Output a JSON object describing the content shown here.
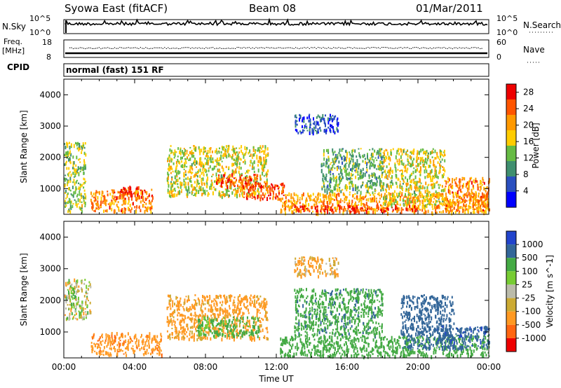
{
  "header": {
    "station": "Syowa East (fitACF)",
    "beam": "Beam 08",
    "date": "01/Mar/2011"
  },
  "panels": {
    "nsky": {
      "left_label": "N.Sky",
      "left_top": "10^5",
      "left_bottom": "10^0",
      "right_label": "N.Search",
      "right_top": "10^5",
      "right_bottom": "10^0"
    },
    "freq": {
      "left_label_1": "Freq.",
      "left_label_2": "[MHz]",
      "left_top": "18",
      "left_bottom": "8",
      "right_label": "Nave",
      "right_top": "60",
      "right_bottom": "0"
    },
    "cpid": {
      "label": "CPID",
      "value": "normal (fast) 151 RF"
    }
  },
  "colors": {
    "power_scale": [
      "#0000ff",
      "#2a4fbf",
      "#3f8f6f",
      "#66bb44",
      "#ffcc00",
      "#ff9900",
      "#ff5500",
      "#ee0000"
    ],
    "velocity_scale": [
      "#2244cc",
      "#336699",
      "#44aa44",
      "#77cc33",
      "#bbbbaa",
      "#ccaa33",
      "#ff9922",
      "#ff6611",
      "#ee0000"
    ]
  },
  "chart_data": [
    {
      "type": "heatmap",
      "variable": "power",
      "ylabel": "Slant Range [km]",
      "xlabel": "Time UT",
      "ylim": [
        180,
        4500
      ],
      "xlim": [
        "00:00",
        "24:00"
      ],
      "y_ticks": [
        1000,
        2000,
        3000,
        4000
      ],
      "x_ticks": [
        "00:00",
        "04:00",
        "08:00",
        "12:00",
        "16:00",
        "20:00",
        "00:00"
      ],
      "colorbar": {
        "label": "Power [dB]",
        "ticks": [
          4,
          8,
          12,
          16,
          20,
          24,
          28
        ],
        "range": [
          0,
          30
        ]
      },
      "echo_regions": [
        {
          "t0": 0.0,
          "t1": 1.2,
          "r0": 300,
          "r1": 2500,
          "value": 14
        },
        {
          "t0": 1.5,
          "t1": 5.0,
          "r0": 300,
          "r1": 1000,
          "value": 22
        },
        {
          "t0": 2.8,
          "t1": 4.2,
          "r0": 700,
          "r1": 1100,
          "value": 26
        },
        {
          "t0": 5.8,
          "t1": 11.5,
          "r0": 800,
          "r1": 2400,
          "value": 16
        },
        {
          "t0": 8.5,
          "t1": 11.0,
          "r0": 1100,
          "r1": 1500,
          "value": 24
        },
        {
          "t0": 10.0,
          "t1": 12.5,
          "r0": 700,
          "r1": 1200,
          "value": 26
        },
        {
          "t0": 12.2,
          "t1": 24.0,
          "r0": 250,
          "r1": 900,
          "value": 20
        },
        {
          "t0": 13.0,
          "t1": 20.0,
          "r0": 300,
          "r1": 500,
          "value": 27
        },
        {
          "t0": 14.5,
          "t1": 18.0,
          "r0": 900,
          "r1": 2300,
          "value": 12
        },
        {
          "t0": 13.0,
          "t1": 15.5,
          "r0": 2800,
          "r1": 3400,
          "value": 6
        },
        {
          "t0": 18.0,
          "t1": 21.5,
          "r0": 500,
          "r1": 2300,
          "value": 16
        },
        {
          "t0": 21.5,
          "t1": 24.0,
          "r0": 300,
          "r1": 1400,
          "value": 22
        }
      ]
    },
    {
      "type": "heatmap",
      "variable": "velocity",
      "ylabel": "Slant Range [km]",
      "xlabel": "Time UT",
      "ylim": [
        180,
        4500
      ],
      "xlim": [
        "00:00",
        "24:00"
      ],
      "y_ticks": [
        1000,
        2000,
        3000,
        4000
      ],
      "x_ticks": [
        "00:00",
        "04:00",
        "08:00",
        "12:00",
        "16:00",
        "20:00",
        "00:00"
      ],
      "colorbar": {
        "label": "Velocity [m s^-1]",
        "ticks": [
          "1000",
          "500",
          "100",
          "25",
          "-25",
          "-100",
          "-500",
          "-1000"
        ]
      },
      "echo_regions": [
        {
          "t0": 0.0,
          "t1": 1.5,
          "r0": 1400,
          "r1": 2700,
          "value": 0
        },
        {
          "t0": 1.5,
          "t1": 5.5,
          "r0": 300,
          "r1": 1000,
          "value": -400
        },
        {
          "t0": 5.8,
          "t1": 11.5,
          "r0": 800,
          "r1": 2200,
          "value": -200
        },
        {
          "t0": 7.5,
          "t1": 11.0,
          "r0": 900,
          "r1": 1500,
          "value": 200
        },
        {
          "t0": 12.2,
          "t1": 24.0,
          "r0": 250,
          "r1": 900,
          "value": 300
        },
        {
          "t0": 13.0,
          "t1": 18.0,
          "r0": 900,
          "r1": 2400,
          "value": 400
        },
        {
          "t0": 13.0,
          "t1": 15.5,
          "r0": 2800,
          "r1": 3400,
          "value": -150
        },
        {
          "t0": 19.0,
          "t1": 22.0,
          "r0": 500,
          "r1": 2200,
          "value": 700
        },
        {
          "t0": 21.0,
          "t1": 24.0,
          "r0": 500,
          "r1": 1200,
          "value": 900
        }
      ]
    }
  ]
}
